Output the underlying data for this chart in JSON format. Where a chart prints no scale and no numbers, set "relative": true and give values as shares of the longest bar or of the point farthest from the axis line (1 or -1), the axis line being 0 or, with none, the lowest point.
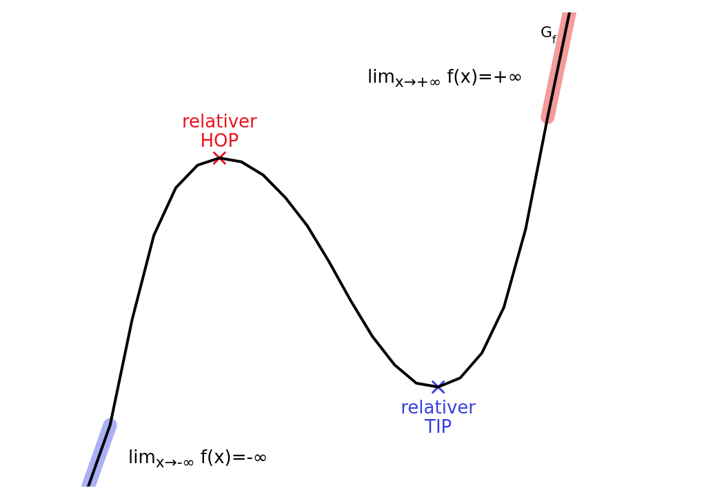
{
  "chart_data": {
    "type": "line",
    "relative": true,
    "categories": [
      null,
      null,
      null,
      null,
      null,
      null,
      null,
      null,
      null,
      null,
      null,
      null,
      null,
      null,
      null,
      null,
      null,
      null,
      null,
      null,
      null,
      null,
      null
    ],
    "series": [
      {
        "color": "#aab0f4",
        "values": [
          0,
          0.13,
          null,
          null,
          null,
          null,
          null,
          null,
          null,
          null,
          null,
          null,
          null,
          null,
          null,
          null,
          null,
          null,
          null,
          null,
          null,
          null,
          null
        ]
      },
      {
        "color": "#f49b9b",
        "values": [
          null,
          null,
          null,
          null,
          null,
          null,
          null,
          null,
          null,
          null,
          null,
          null,
          null,
          null,
          null,
          null,
          null,
          null,
          null,
          null,
          null,
          0.779,
          1
        ]
      },
      {
        "name": "G$_{f}$",
        "color": "#000000",
        "values": [
          0,
          0.13,
          0.351,
          0.53,
          0.63,
          0.678,
          0.693,
          0.685,
          0.657,
          0.61,
          0.551,
          0.475,
          0.392,
          0.316,
          0.257,
          0.218,
          0.21,
          0.229,
          0.282,
          0.378,
          0.544,
          0.779,
          1
        ]
      }
    ],
    "annotations": [
      {
        "text": "relativer HOP",
        "y": 0.693
      },
      {
        "text": "relativer TIP",
        "y": 0.21
      },
      "lim$_{x→+∞}$ f(x)=+∞",
      "lim$_{x→-∞}$ f(x)=-∞"
    ]
  }
}
